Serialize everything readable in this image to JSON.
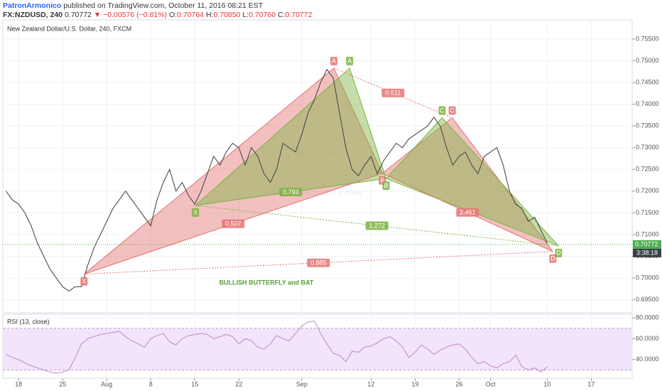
{
  "header": {
    "author": "PatronArmonico",
    "published": "published on TradingView.com, October 11, 2016 08:21 EST",
    "symbol": "FX:NZDUSD, 240",
    "last": "0.70772",
    "change": "▼ −0.00576 (−0.81%)",
    "ohlc": [
      {
        "label": "O:",
        "value": "0.70764"
      },
      {
        "label": "H:",
        "value": "0.70850"
      },
      {
        "label": "L:",
        "value": "0.70760"
      },
      {
        "label": "C:",
        "value": "0.70772"
      }
    ]
  },
  "chart_data": [
    {
      "type": "line",
      "title": "New Zealand Dollar/U.S. Dollar, 240, FXCM",
      "watermark": [
        "NZDUSD, 240",
        "New Zealand Dollar/U.S. Dollar"
      ],
      "annotation": "BULLISH BUTTERFLY and BAT",
      "x": [
        -2,
        -1,
        0,
        1,
        2,
        3,
        4,
        5,
        6,
        7,
        8,
        9,
        10,
        11,
        12,
        13,
        14,
        15,
        16,
        17,
        18,
        19,
        20,
        21,
        22,
        23,
        24,
        25,
        26,
        27,
        28,
        29,
        30,
        31,
        32,
        33,
        34,
        35,
        36,
        37,
        38,
        39,
        40,
        41,
        42,
        43,
        44,
        45,
        46,
        47,
        48,
        49,
        50,
        51,
        52,
        53,
        54,
        55,
        56,
        57,
        58,
        59,
        60,
        61,
        62,
        63,
        64,
        65,
        66,
        67,
        68,
        69,
        70,
        71,
        72,
        73,
        74,
        75,
        76,
        77,
        78,
        79,
        80,
        81,
        82,
        83,
        84
      ],
      "series": [
        {
          "color": "#4a4a4a",
          "values": [
            0.72,
            0.718,
            0.717,
            0.715,
            0.712,
            0.708,
            0.705,
            0.702,
            0.7,
            0.698,
            0.697,
            0.698,
            0.698,
            0.703,
            0.707,
            0.71,
            0.713,
            0.716,
            0.718,
            0.72,
            0.718,
            0.716,
            0.714,
            0.712,
            0.718,
            0.722,
            0.725,
            0.72,
            0.722,
            0.719,
            0.717,
            0.72,
            0.724,
            0.728,
            0.726,
            0.729,
            0.731,
            0.73,
            0.726,
            0.73,
            0.728,
            0.724,
            0.722,
            0.725,
            0.731,
            0.73,
            0.729,
            0.733,
            0.738,
            0.741,
            0.745,
            0.748,
            0.746,
            0.738,
            0.73,
            0.725,
            0.7235,
            0.726,
            0.728,
            0.724,
            0.727,
            0.729,
            0.731,
            0.73,
            0.732,
            0.733,
            0.734,
            0.735,
            0.737,
            0.735,
            0.73,
            0.726,
            0.728,
            0.729,
            0.726,
            0.724,
            0.728,
            0.729,
            0.73,
            0.726,
            0.72,
            0.717,
            0.716,
            0.713,
            0.714,
            0.711,
            0.708
          ]
        }
      ],
      "patterns": [
        {
          "color": "#e57373",
          "labels": [
            "X",
            "A",
            "B",
            "C",
            "D"
          ],
          "x": [
            10.4,
            50.1,
            57.8,
            68.9,
            84.9
          ],
          "y": [
            0.7009,
            0.7483,
            0.7241,
            0.7369,
            0.7061
          ],
          "ratios": [
            0.511,
            0.507,
            2.461,
            0.885
          ]
        },
        {
          "color": "#7cb342",
          "labels": [
            "X",
            "A",
            "B",
            "C",
            "D"
          ],
          "x": [
            28.1,
            52.6,
            58.4,
            67.3,
            85.8
          ],
          "y": [
            0.7167,
            0.7483,
            0.7229,
            0.7369,
            0.7074
          ],
          "ratios": [
            0.793,
            1.272
          ]
        }
      ],
      "last_price": {
        "value": 0.70772,
        "label": "0.70772"
      },
      "countdown": "3:38:18",
      "xlim": [
        -2.5,
        97.5
      ],
      "xticks": [
        {
          "value": 0,
          "label": "18"
        },
        {
          "value": 7,
          "label": "25"
        },
        {
          "value": 14,
          "label": "Aug"
        },
        {
          "value": 21,
          "label": "8"
        },
        {
          "value": 28,
          "label": "15"
        },
        {
          "value": 35,
          "label": "22"
        },
        {
          "value": 45,
          "label": "Sep"
        },
        {
          "value": 56,
          "label": "12"
        },
        {
          "value": 63,
          "label": "19"
        },
        {
          "value": 70,
          "label": "26"
        },
        {
          "value": 75,
          "label": "Oct"
        },
        {
          "value": 84,
          "label": "10"
        },
        {
          "value": 91,
          "label": "17"
        }
      ],
      "ylim": [
        0.692,
        0.7594
      ],
      "yticks": [
        {
          "value": 0.695,
          "label": "0.69500"
        },
        {
          "value": 0.7,
          "label": "0.70000"
        },
        {
          "value": 0.705,
          "label": "0.70500"
        },
        {
          "value": 0.71,
          "label": "0.71000"
        },
        {
          "value": 0.715,
          "label": "0.71500"
        },
        {
          "value": 0.72,
          "label": "0.72000"
        },
        {
          "value": 0.725,
          "label": "0.72500"
        },
        {
          "value": 0.73,
          "label": "0.73000"
        },
        {
          "value": 0.735,
          "label": "0.73500"
        },
        {
          "value": 0.74,
          "label": "0.74000"
        },
        {
          "value": 0.745,
          "label": "0.74500"
        },
        {
          "value": 0.75,
          "label": "0.75000"
        },
        {
          "value": 0.755,
          "label": "0.75500"
        }
      ],
      "grid": true
    },
    {
      "type": "line",
      "title": "RSI (13, close)",
      "bands": [
        30,
        70
      ],
      "series": [
        {
          "color": "#c490c9",
          "values": [
            45,
            42,
            40,
            37,
            34,
            32,
            30,
            28,
            27,
            28,
            30,
            42,
            55,
            60,
            62,
            64,
            65,
            66,
            67,
            62,
            58,
            55,
            52,
            60,
            63,
            65,
            57,
            54,
            60,
            63,
            64,
            65,
            64,
            60,
            62,
            64,
            62,
            55,
            60,
            58,
            52,
            50,
            55,
            63,
            60,
            58,
            65,
            72,
            76,
            77,
            65,
            55,
            46,
            44,
            38,
            48,
            47,
            52,
            53,
            56,
            60,
            62,
            58,
            52,
            42,
            47,
            54,
            50,
            45,
            49,
            52,
            54,
            55,
            50,
            42,
            36,
            38,
            34,
            32,
            36,
            38,
            44,
            33,
            30,
            32,
            28,
            33
          ]
        }
      ],
      "ylim": [
        22.8,
        82.8
      ],
      "yticks": [
        {
          "value": 40,
          "label": "40.0000"
        },
        {
          "value": 60,
          "label": "60.0000"
        },
        {
          "value": 80,
          "label": "80.0000"
        }
      ],
      "grid": true
    }
  ]
}
